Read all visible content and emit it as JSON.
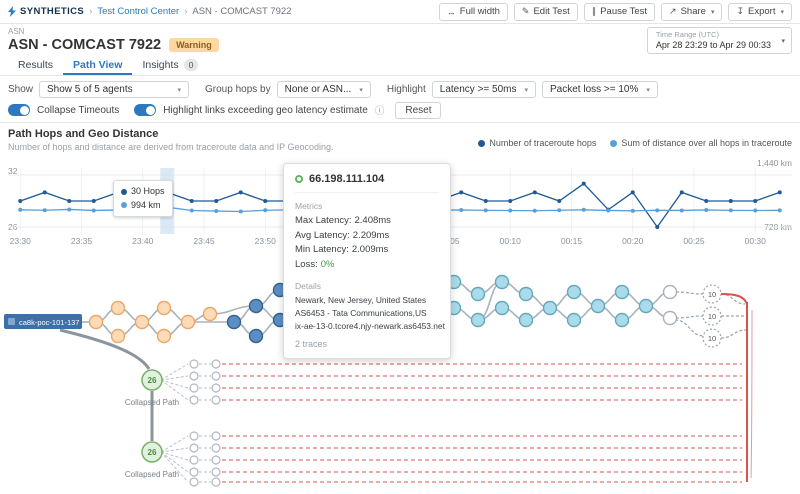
{
  "header": {
    "brand": "SYNTHETICS",
    "sep": "›",
    "crumb1": "Test Control Center",
    "crumb2": "ASN - COMCAST 7922",
    "buttons": [
      {
        "label": "Full width",
        "icon": "↔"
      },
      {
        "label": "Edit Test",
        "icon": "✎"
      },
      {
        "label": "Pause Test",
        "icon": "∥"
      },
      {
        "label": "Share",
        "icon": "↗",
        "caret": "▾"
      },
      {
        "label": "Export",
        "icon": "↧",
        "caret": "▾"
      }
    ]
  },
  "titlebar": {
    "eyebrow": "ASN",
    "title": "ASN - COMCAST 7922",
    "badge": "Warning",
    "time_label": "Time Range (UTC)",
    "time_value": "Apr 28 23:29 to Apr 29 00:33",
    "caret": "▾"
  },
  "tabs": [
    {
      "label": "Results"
    },
    {
      "label": "Path View"
    },
    {
      "label": "Insights",
      "badge": "0"
    }
  ],
  "controls": {
    "show_label": "Show",
    "show_value": "Show 5 of 5 agents",
    "group_label": "Group hops by",
    "group_value": "None or ASN...",
    "highlight_label": "Highlight",
    "highlight_latency": "Latency >= 50ms",
    "highlight_loss": "Packet loss >= 10%",
    "toggle_collapse": "Collapse Timeouts",
    "toggle_geo": "Highlight links exceeding geo latency estimate",
    "info_icon": "ⓘ",
    "reset": "Reset",
    "caret": "▾"
  },
  "section": {
    "title": "Path Hops and Geo Distance",
    "subtitle": "Number of hops and distance are derived from traceroute data and IP Geocoding.",
    "legend": [
      {
        "label": "Number of traceroute hops",
        "color": "#1f5a96"
      },
      {
        "label": "Sum of distance over all hops in traceroute",
        "color": "#5aa0d8"
      }
    ]
  },
  "chart_data": {
    "type": "line",
    "title": "Path Hops and Geo Distance",
    "x": [
      "23:30",
      "23:32",
      "23:34",
      "23:36",
      "23:38",
      "23:40",
      "23:42",
      "23:44",
      "23:46",
      "23:48",
      "23:50",
      "23:52",
      "23:54",
      "23:56",
      "23:58",
      "00:00",
      "00:02",
      "00:04",
      "00:06",
      "00:08",
      "00:10",
      "00:12",
      "00:14",
      "00:16",
      "00:18",
      "00:20",
      "00:22",
      "00:24",
      "00:26",
      "00:28",
      "00:30",
      "00:32"
    ],
    "series": [
      {
        "name": "Number of traceroute hops",
        "axis": "left",
        "color": "#1f5a96",
        "values": [
          29,
          30,
          29,
          29,
          30,
          29,
          30,
          29,
          29,
          30,
          29,
          29,
          30,
          29,
          29,
          29,
          30,
          29,
          30,
          29,
          29,
          30,
          29,
          31,
          28,
          30,
          26,
          30,
          29,
          29,
          29,
          30
        ]
      },
      {
        "name": "Sum of distance over all hops in traceroute",
        "axis": "right",
        "color": "#5aa0d8",
        "values": [
          958,
          952,
          963,
          949,
          956,
          961,
          994,
          948,
          941,
          935,
          952,
          957,
          946,
          950,
          955,
          949,
          944,
          951,
          956,
          950,
          948,
          945,
          952,
          958,
          949,
          944,
          951,
          949,
          956,
          950,
          948,
          951
        ]
      }
    ],
    "x_ticks": [
      "23:30",
      "23:35",
      "23:40",
      "23:45",
      "23:50",
      "23:55",
      "00:00",
      "00:05",
      "00:10",
      "00:15",
      "00:20",
      "00:25",
      "00:30"
    ],
    "left_axis": {
      "min": 26,
      "max": 32,
      "top_label": "32",
      "bottom_label": "26"
    },
    "right_axis": {
      "min": 720,
      "max": 1440,
      "top_label": "1,440 km",
      "bottom_label": "720 km"
    },
    "selected_x": "23:42",
    "flyout": {
      "hops": "30 Hops",
      "distance": "994 km"
    },
    "grid": true,
    "legend_position": "top-right"
  },
  "tooltip": {
    "ip": "66.198.111.104",
    "metrics_title": "Metrics",
    "metrics": [
      {
        "label": "Max Latency:",
        "value": "2.408ms"
      },
      {
        "label": "Avg Latency:",
        "value": "2.209ms"
      },
      {
        "label": "Min Latency:",
        "value": "2.009ms"
      },
      {
        "label": "Loss:",
        "value": "0%"
      }
    ],
    "details_title": "Details",
    "details": [
      "Newark, New Jersey, United States",
      "AS6453 - Tata Communications,US",
      "ix-ae-13-0.tcore4.njy-newark.as6453.net"
    ],
    "traces": "2 traces"
  },
  "pathgraph": {
    "agent": "ca8k-poc-101-137",
    "collapsed_count": "26",
    "collapsed_label": "Collapsed Path",
    "group_count": "10"
  }
}
